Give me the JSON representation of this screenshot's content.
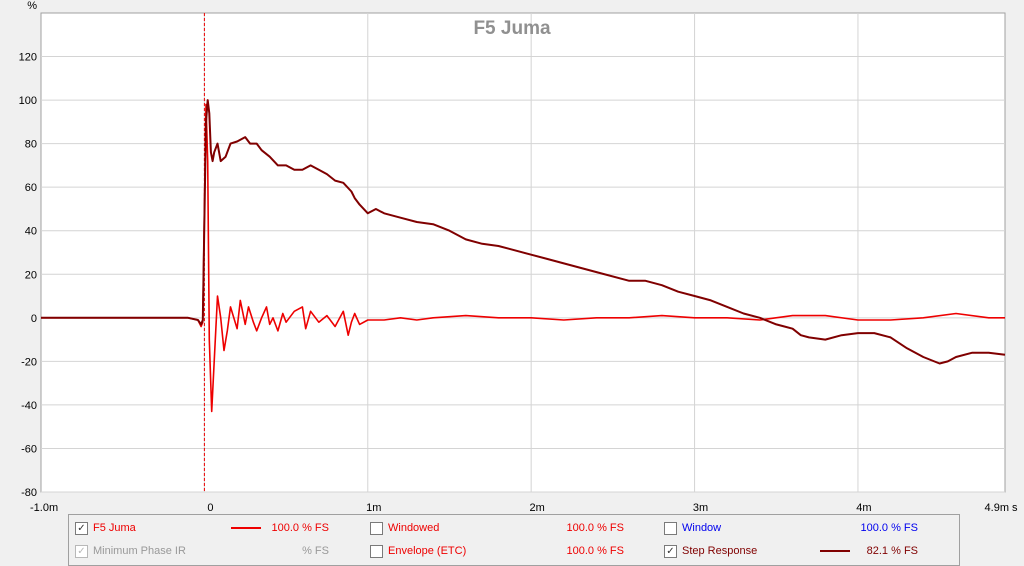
{
  "chart_data": {
    "type": "line",
    "title": "F5 Juma",
    "ylabel": "%",
    "xlabel": "s",
    "xlim": [
      -1.0,
      4.9
    ],
    "ylim": [
      -80,
      140
    ],
    "y_ticks": [
      "120",
      "100",
      "80",
      "60",
      "40",
      "20",
      "0",
      "-20",
      "-40",
      "-60",
      "-80"
    ],
    "x_ticks": [
      "-1.0m",
      "0",
      "1m",
      "2m",
      "3m",
      "4m",
      "4.9m"
    ],
    "x_unit": "s",
    "grid": true,
    "marker_x": 0.0,
    "series": [
      {
        "name": "F5 Juma",
        "color": "#ee0000",
        "points": [
          [
            -1.0,
            0
          ],
          [
            -0.5,
            0
          ],
          [
            -0.1,
            0
          ],
          [
            -0.04,
            -1
          ],
          [
            -0.02,
            -4
          ],
          [
            -0.01,
            -2
          ],
          [
            0,
            50
          ],
          [
            0.01,
            98
          ],
          [
            0.02,
            72
          ],
          [
            0.03,
            -10
          ],
          [
            0.045,
            -43
          ],
          [
            0.06,
            -20
          ],
          [
            0.08,
            10
          ],
          [
            0.1,
            0
          ],
          [
            0.12,
            -15
          ],
          [
            0.14,
            -6
          ],
          [
            0.16,
            5
          ],
          [
            0.2,
            -5
          ],
          [
            0.22,
            8
          ],
          [
            0.25,
            -3
          ],
          [
            0.27,
            5
          ],
          [
            0.3,
            -2
          ],
          [
            0.32,
            -6
          ],
          [
            0.35,
            0
          ],
          [
            0.38,
            5
          ],
          [
            0.4,
            -3
          ],
          [
            0.42,
            0
          ],
          [
            0.45,
            -6
          ],
          [
            0.48,
            2
          ],
          [
            0.5,
            -2
          ],
          [
            0.55,
            3
          ],
          [
            0.6,
            5
          ],
          [
            0.62,
            -5
          ],
          [
            0.65,
            3
          ],
          [
            0.7,
            -2
          ],
          [
            0.75,
            1
          ],
          [
            0.8,
            -4
          ],
          [
            0.85,
            3
          ],
          [
            0.88,
            -8
          ],
          [
            0.9,
            -2
          ],
          [
            0.92,
            2
          ],
          [
            0.95,
            -3
          ],
          [
            1.0,
            -1
          ],
          [
            1.1,
            -1
          ],
          [
            1.2,
            0
          ],
          [
            1.3,
            -1
          ],
          [
            1.4,
            0
          ],
          [
            1.6,
            1
          ],
          [
            1.8,
            0
          ],
          [
            2.0,
            0
          ],
          [
            2.2,
            -1
          ],
          [
            2.4,
            0
          ],
          [
            2.6,
            0
          ],
          [
            2.8,
            1
          ],
          [
            3.0,
            0
          ],
          [
            3.2,
            0
          ],
          [
            3.4,
            -1
          ],
          [
            3.6,
            1
          ],
          [
            3.8,
            1
          ],
          [
            4.0,
            -1
          ],
          [
            4.2,
            -1
          ],
          [
            4.4,
            0
          ],
          [
            4.6,
            2
          ],
          [
            4.8,
            0
          ],
          [
            4.9,
            0
          ]
        ]
      },
      {
        "name": "Step Response",
        "color": "#800000",
        "points": [
          [
            -1.0,
            0
          ],
          [
            -0.5,
            0
          ],
          [
            -0.1,
            0
          ],
          [
            -0.04,
            -1
          ],
          [
            -0.02,
            -3
          ],
          [
            -0.01,
            -1
          ],
          [
            0,
            45
          ],
          [
            0.01,
            90
          ],
          [
            0.02,
            100
          ],
          [
            0.03,
            94
          ],
          [
            0.04,
            76
          ],
          [
            0.05,
            72
          ],
          [
            0.06,
            76
          ],
          [
            0.08,
            80
          ],
          [
            0.1,
            72
          ],
          [
            0.13,
            74
          ],
          [
            0.16,
            80
          ],
          [
            0.2,
            81
          ],
          [
            0.25,
            83
          ],
          [
            0.28,
            80
          ],
          [
            0.32,
            80
          ],
          [
            0.35,
            77
          ],
          [
            0.4,
            74
          ],
          [
            0.45,
            70
          ],
          [
            0.5,
            70
          ],
          [
            0.55,
            68
          ],
          [
            0.6,
            68
          ],
          [
            0.65,
            70
          ],
          [
            0.7,
            68
          ],
          [
            0.75,
            66
          ],
          [
            0.8,
            63
          ],
          [
            0.85,
            62
          ],
          [
            0.9,
            58
          ],
          [
            0.92,
            55
          ],
          [
            0.95,
            52
          ],
          [
            1.0,
            48
          ],
          [
            1.05,
            50
          ],
          [
            1.1,
            48
          ],
          [
            1.2,
            46
          ],
          [
            1.3,
            44
          ],
          [
            1.4,
            43
          ],
          [
            1.5,
            40
          ],
          [
            1.6,
            36
          ],
          [
            1.7,
            34
          ],
          [
            1.8,
            33
          ],
          [
            1.9,
            31
          ],
          [
            2.0,
            29
          ],
          [
            2.1,
            27
          ],
          [
            2.2,
            25
          ],
          [
            2.4,
            21
          ],
          [
            2.6,
            17
          ],
          [
            2.7,
            17
          ],
          [
            2.8,
            15
          ],
          [
            2.9,
            12
          ],
          [
            3.0,
            10
          ],
          [
            3.1,
            8
          ],
          [
            3.2,
            5
          ],
          [
            3.3,
            2
          ],
          [
            3.4,
            0
          ],
          [
            3.5,
            -3
          ],
          [
            3.55,
            -4
          ],
          [
            3.6,
            -5
          ],
          [
            3.65,
            -8
          ],
          [
            3.7,
            -9
          ],
          [
            3.8,
            -10
          ],
          [
            3.9,
            -8
          ],
          [
            4.0,
            -7
          ],
          [
            4.1,
            -7
          ],
          [
            4.2,
            -9
          ],
          [
            4.3,
            -14
          ],
          [
            4.4,
            -18
          ],
          [
            4.5,
            -21
          ],
          [
            4.55,
            -20
          ],
          [
            4.6,
            -18
          ],
          [
            4.7,
            -16
          ],
          [
            4.8,
            -16
          ],
          [
            4.9,
            -17
          ]
        ]
      }
    ]
  },
  "legend": {
    "rows": [
      [
        {
          "checked": true,
          "disabled": false,
          "label": "F5 Juma",
          "label_color": "#ee0000",
          "swatch": "#ee0000",
          "value": "100.0 % FS",
          "value_color": "#ee0000"
        },
        {
          "checked": false,
          "disabled": false,
          "label": "Windowed",
          "label_color": "#ee0000",
          "swatch": "",
          "value": "100.0 % FS",
          "value_color": "#ee0000"
        },
        {
          "checked": false,
          "disabled": false,
          "label": "Window",
          "label_color": "#0000ee",
          "swatch": "",
          "value": "100.0 % FS",
          "value_color": "#0000ee"
        }
      ],
      [
        {
          "checked": true,
          "disabled": true,
          "label": "Minimum Phase IR",
          "label_color": "#999999",
          "swatch": "",
          "value": "% FS",
          "value_color": "#999999"
        },
        {
          "checked": false,
          "disabled": false,
          "label": "Envelope (ETC)",
          "label_color": "#ee0000",
          "swatch": "",
          "value": "100.0 % FS",
          "value_color": "#ee0000"
        },
        {
          "checked": true,
          "disabled": false,
          "label": "Step Response",
          "label_color": "#800000",
          "swatch": "#800000",
          "value": "82.1 % FS",
          "value_color": "#800000"
        }
      ]
    ]
  }
}
